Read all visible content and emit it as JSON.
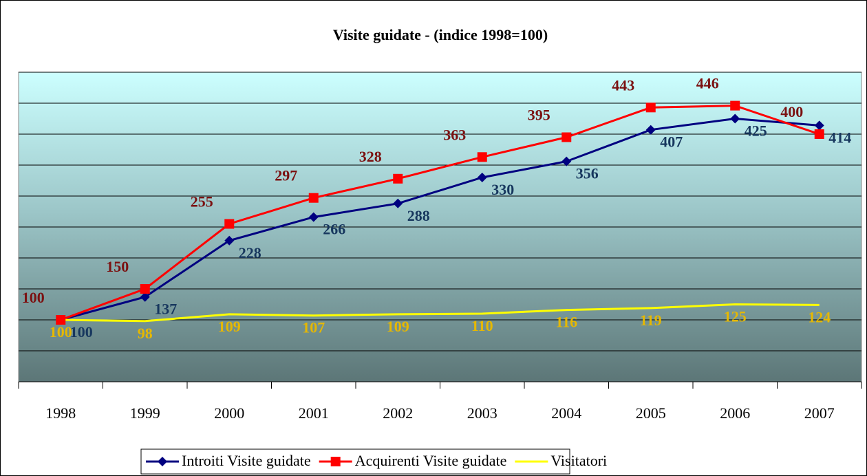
{
  "chart_data": {
    "type": "line",
    "title": "Visite guidate - (indice 1998=100)",
    "categories": [
      "1998",
      "1999",
      "2000",
      "2001",
      "2002",
      "2003",
      "2004",
      "2005",
      "2006",
      "2007"
    ],
    "series": [
      {
        "name": "Introiti Visite guidate",
        "color": "#000080",
        "label_color": "#17375e",
        "marker": "diamond",
        "values": [
          100,
          137,
          228,
          266,
          288,
          330,
          356,
          407,
          425,
          414
        ]
      },
      {
        "name": "Acquirenti Visite guidate",
        "color": "#ff0000",
        "label_color": "#7b1111",
        "marker": "square",
        "values": [
          100,
          150,
          255,
          297,
          328,
          363,
          395,
          443,
          446,
          400
        ]
      },
      {
        "name": "Visitatori",
        "color": "#ffff00",
        "label_color": "#e6b800",
        "marker": "none",
        "values": [
          100,
          98,
          109,
          107,
          109,
          110,
          116,
          119,
          125,
          124
        ]
      }
    ],
    "ylim": [
      0,
      500
    ],
    "yticks": [
      0,
      50,
      100,
      150,
      200,
      250,
      300,
      350,
      400,
      450,
      500
    ],
    "grid": true,
    "legend": "bottom"
  }
}
